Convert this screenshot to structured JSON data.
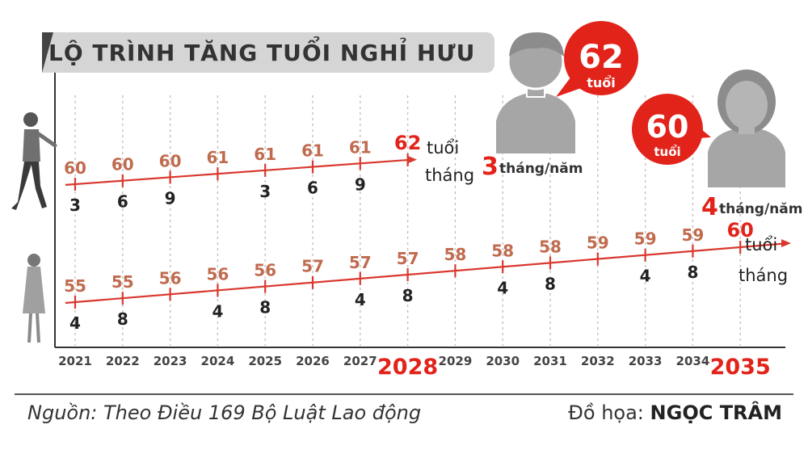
{
  "title": "LỘ TRÌNH TĂNG TUỔI NGHỈ HƯU",
  "footer": {
    "source": "Nguồn: Theo Điều 169 Bộ Luật Lao động",
    "credit_prefix": "Đồ họa:",
    "credit_name": "NGỌC TRÂM"
  },
  "male": {
    "target_age": "62",
    "target_unit": "tuổi",
    "rate_number": "3",
    "rate_unit": "tháng/năm"
  },
  "female": {
    "target_age": "60",
    "target_unit": "tuổi",
    "rate_number": "4",
    "rate_unit": "tháng/năm"
  },
  "colors": {
    "line": "#d9382e",
    "age_text": "#c06b4e",
    "highlight": "#e2231a",
    "month_text": "#222222",
    "figure": "#a6a6a6"
  },
  "chart_data": {
    "type": "line",
    "title": "LỘ TRÌNH TĂNG TUỔI NGHỈ HƯU",
    "categories": [
      "2021",
      "2022",
      "2023",
      "2024",
      "2025",
      "2026",
      "2027",
      "2028",
      "2029",
      "2030",
      "2031",
      "2032",
      "2033",
      "2034",
      "2035"
    ],
    "highlight_categories": [
      "2028",
      "2035"
    ],
    "unit_labels": [
      "tuổi",
      "tháng"
    ],
    "series": [
      {
        "group": "male",
        "years": [
          "2021",
          "2022",
          "2023",
          "2024",
          "2025",
          "2026",
          "2027",
          "2028"
        ],
        "age_years": [
          "60",
          "60",
          "60",
          "61",
          "61",
          "61",
          "61",
          "62"
        ],
        "age_months": [
          "3",
          "6",
          "9",
          "",
          "3",
          "6",
          "9",
          ""
        ]
      },
      {
        "group": "female",
        "years": [
          "2021",
          "2022",
          "2023",
          "2024",
          "2025",
          "2026",
          "2027",
          "2028",
          "2029",
          "2030",
          "2031",
          "2032",
          "2033",
          "2034",
          "2035"
        ],
        "age_years": [
          "55",
          "55",
          "56",
          "56",
          "56",
          "57",
          "57",
          "57",
          "58",
          "58",
          "58",
          "59",
          "59",
          "59",
          "60"
        ],
        "age_months": [
          "4",
          "8",
          "",
          "4",
          "8",
          "",
          "4",
          "8",
          "",
          "4",
          "8",
          "",
          "4",
          "8",
          ""
        ]
      }
    ],
    "grid": true
  }
}
